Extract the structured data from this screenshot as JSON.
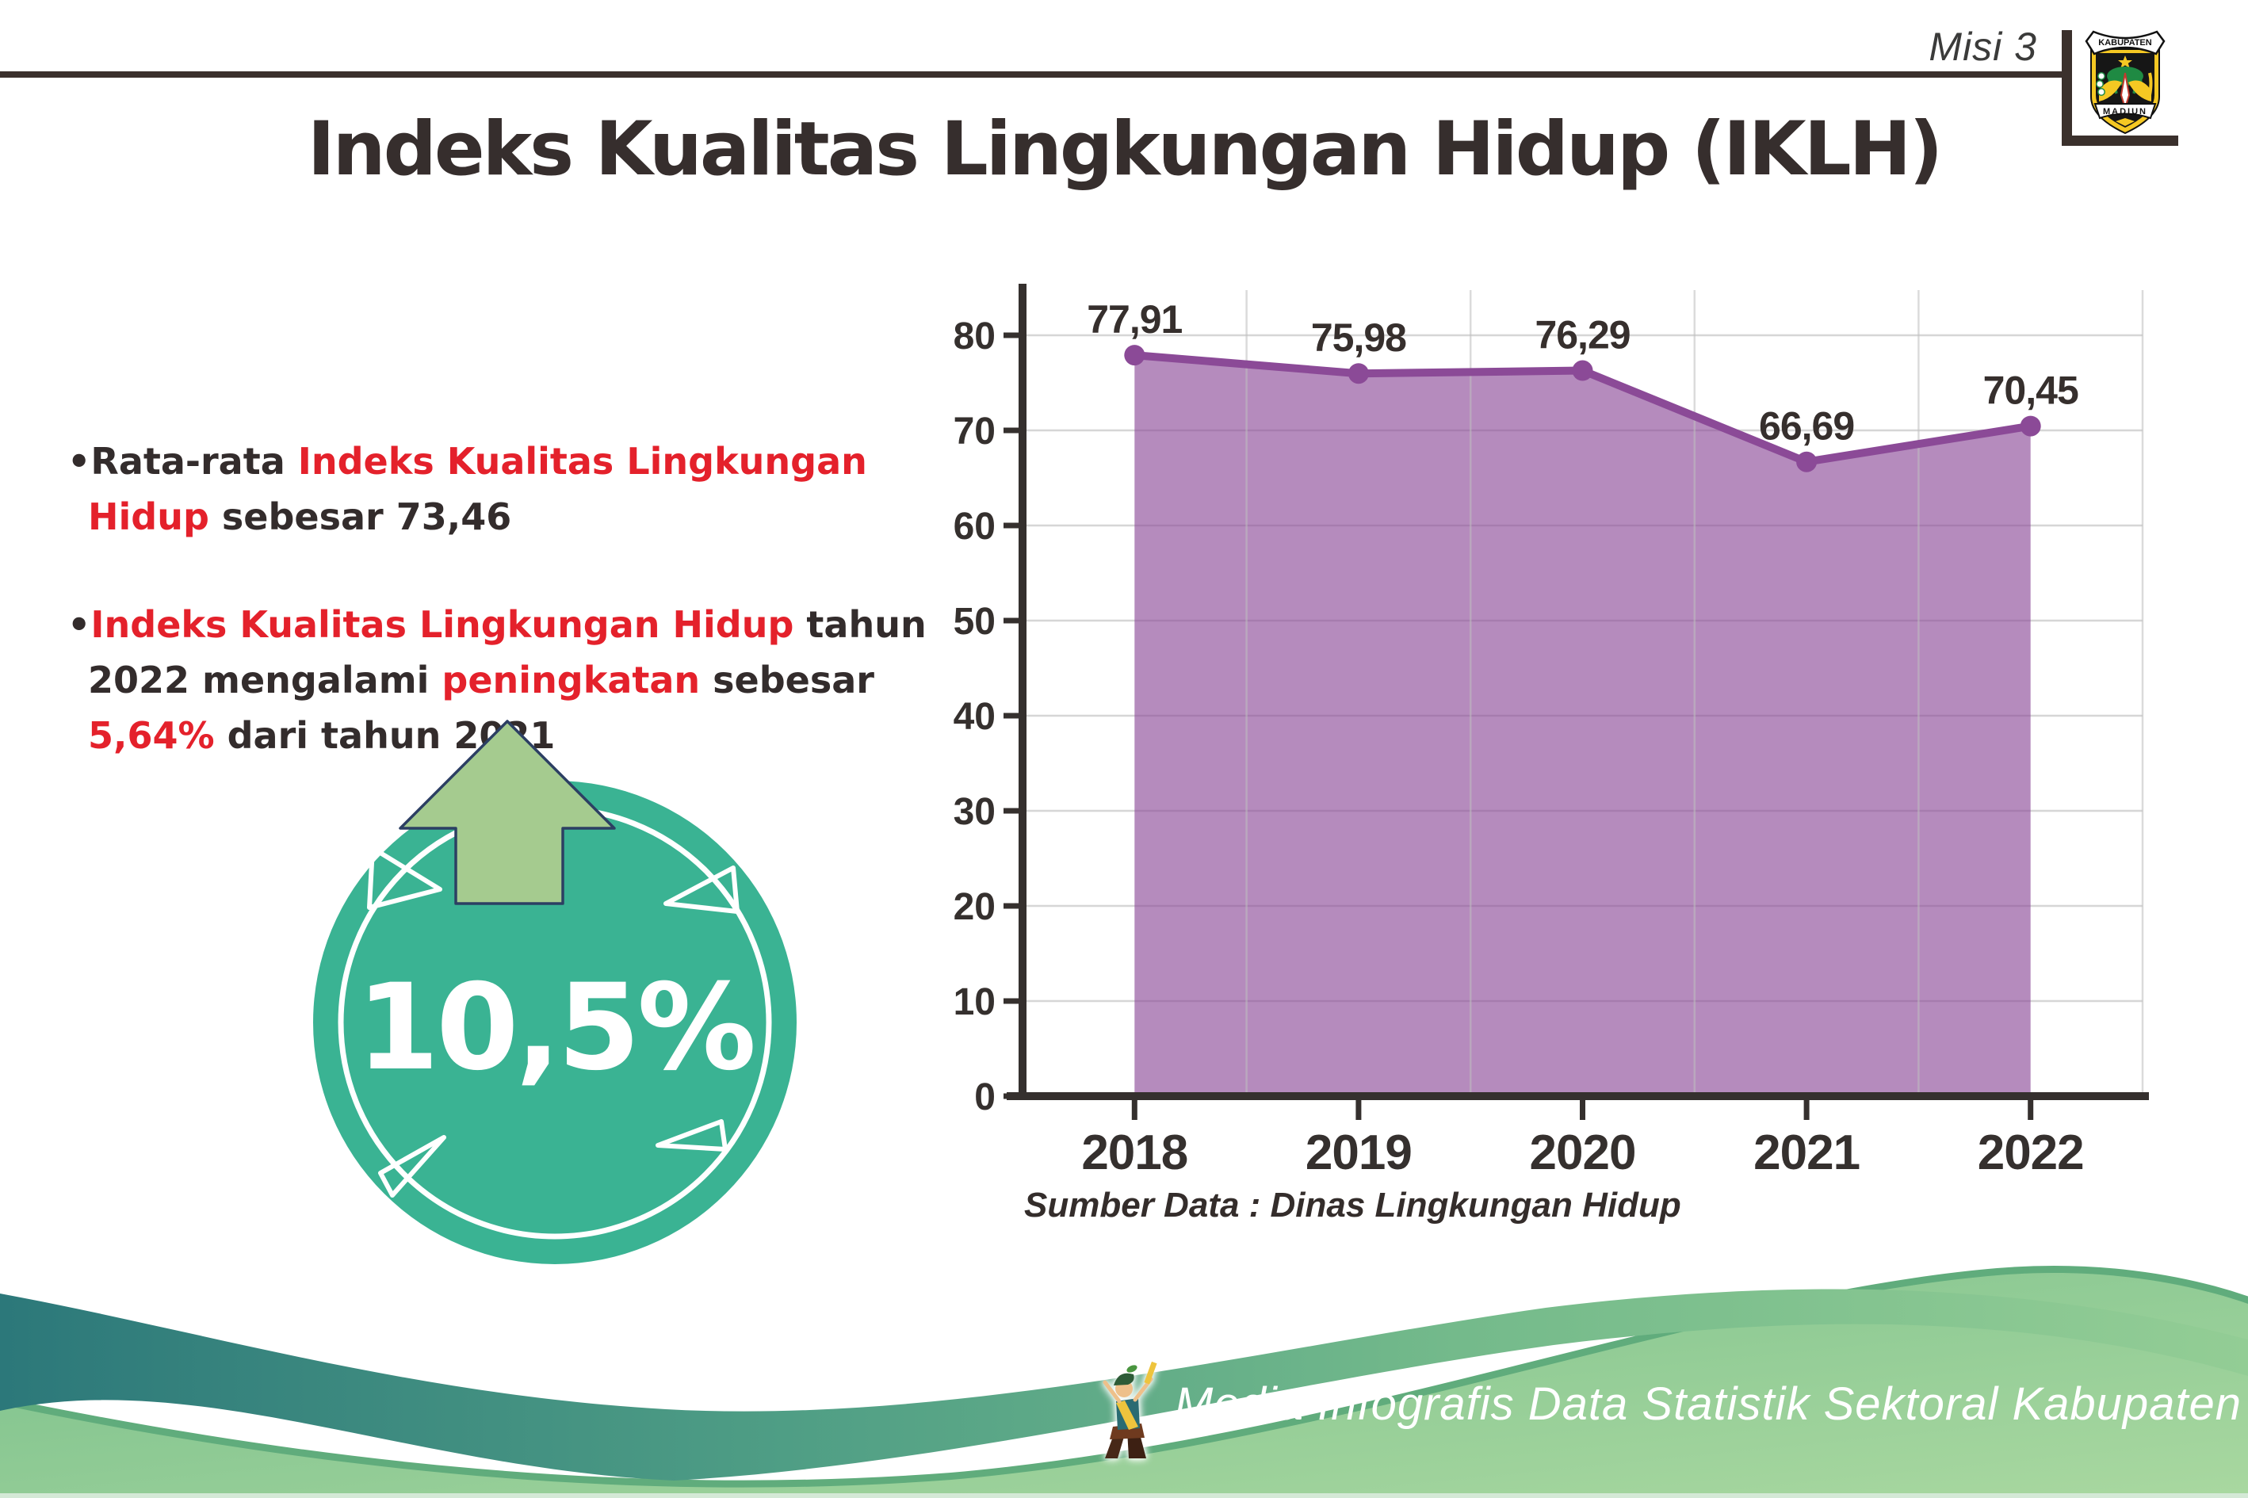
{
  "header": {
    "misi": "Misi 3"
  },
  "logo": {
    "top": "KABUPATEN",
    "bottom": "MADIUN"
  },
  "title": "Indeks Kualitas Lingkungan Hidup (IKLH)",
  "bullets": [
    {
      "segments": [
        {
          "t": "Rata-rata ",
          "c": "dark"
        },
        {
          "t": "Indeks Kualitas Lingkungan Hidup",
          "c": "red"
        },
        {
          "t": " sebesar 73,46",
          "c": "dark"
        }
      ]
    },
    {
      "segments": [
        {
          "t": "Indeks Kualitas Lingkungan Hidup",
          "c": "red"
        },
        {
          "t": " tahun 2022 mengalami ",
          "c": "dark"
        },
        {
          "t": "peningkatan",
          "c": "red"
        },
        {
          "t": " sebesar ",
          "c": "dark"
        },
        {
          "t": "5,64%",
          "c": "red"
        },
        {
          "t": " dari tahun 2021",
          "c": "dark"
        }
      ]
    }
  ],
  "badge": {
    "value": "10,5%"
  },
  "chart_data": {
    "type": "area",
    "title": "",
    "xlabel": "",
    "ylabel": "",
    "categories": [
      "2018",
      "2019",
      "2020",
      "2021",
      "2022"
    ],
    "values": [
      77.91,
      75.98,
      76.29,
      66.69,
      70.45
    ],
    "value_labels": [
      "77,91",
      "75,98",
      "76,29",
      "66,69",
      "70,45"
    ],
    "ylim": [
      0,
      80
    ],
    "ytick_step": 10,
    "ytick_labels": [
      "0",
      "10",
      "20",
      "30",
      "40",
      "50",
      "60",
      "70",
      "80"
    ],
    "grid": true,
    "legend": false
  },
  "source_note": "Sumber Data : Dinas Lingkungan Hidup",
  "footer": {
    "text": "Media Infografis Data Statistik Sektoral Kabupaten Madiun |"
  },
  "colors": {
    "red": "#e4212b",
    "dark_text": "#332c2c",
    "chart_line": "#8b4a97",
    "chart_fill_opacity": 0.64,
    "axis": "#35302e",
    "grid": "#d6d6d6",
    "badge_teal": "#3ab393",
    "arrow_green": "#a5cb8f",
    "arrow_outline": "#2c3f63"
  }
}
